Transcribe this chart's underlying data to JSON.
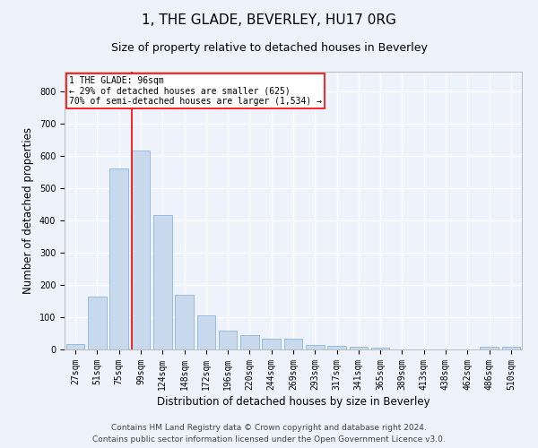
{
  "title": "1, THE GLADE, BEVERLEY, HU17 0RG",
  "subtitle": "Size of property relative to detached houses in Beverley",
  "xlabel": "Distribution of detached houses by size in Beverley",
  "ylabel": "Number of detached properties",
  "bar_color": "#c8d9ee",
  "bar_edge_color": "#8ab4d8",
  "categories": [
    "27sqm",
    "51sqm",
    "75sqm",
    "99sqm",
    "124sqm",
    "148sqm",
    "172sqm",
    "196sqm",
    "220sqm",
    "244sqm",
    "269sqm",
    "293sqm",
    "317sqm",
    "341sqm",
    "365sqm",
    "389sqm",
    "413sqm",
    "438sqm",
    "462sqm",
    "486sqm",
    "510sqm"
  ],
  "values": [
    18,
    163,
    560,
    615,
    415,
    170,
    105,
    57,
    45,
    33,
    33,
    15,
    10,
    7,
    5,
    0,
    0,
    0,
    0,
    7,
    7
  ],
  "ylim": [
    0,
    860
  ],
  "yticks": [
    0,
    100,
    200,
    300,
    400,
    500,
    600,
    700,
    800
  ],
  "property_line_bin": 3,
  "property_label": "1 THE GLADE: 96sqm",
  "annotation_line1": "← 29% of detached houses are smaller (625)",
  "annotation_line2": "70% of semi-detached houses are larger (1,534) →",
  "footer_line1": "Contains HM Land Registry data © Crown copyright and database right 2024.",
  "footer_line2": "Contains public sector information licensed under the Open Government Licence v3.0.",
  "background_color": "#eef2fa",
  "grid_color": "#ffffff",
  "title_fontsize": 11,
  "subtitle_fontsize": 9,
  "label_fontsize": 8.5,
  "tick_fontsize": 7,
  "footer_fontsize": 6.5
}
